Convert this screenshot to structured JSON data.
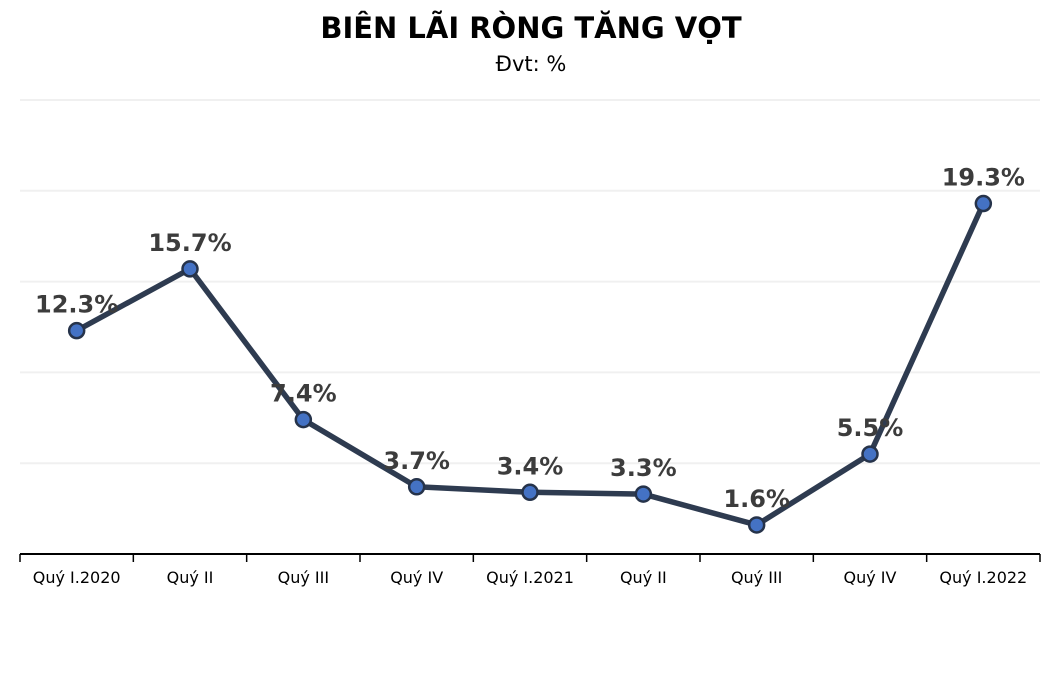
{
  "header": {
    "title": "BIÊN LÃI RÒNG TĂNG VỌT",
    "subtitle": "Đvt: %"
  },
  "chart_data": {
    "type": "line",
    "title": "BIÊN LÃI RÒNG TĂNG VỌT",
    "subtitle": "Đvt: %",
    "unit": "%",
    "categories": [
      "Quý I.2020",
      "Quý II",
      "Quý III",
      "Quý IV",
      "Quý I.2021",
      "Quý II",
      "Quý III",
      "Quý IV",
      "Quý I.2022"
    ],
    "values": [
      12.3,
      15.7,
      7.4,
      3.7,
      3.4,
      3.3,
      1.6,
      5.5,
      19.3
    ],
    "data_labels": [
      "12.3%",
      "15.7%",
      "7.4%",
      "3.7%",
      "3.4%",
      "3.3%",
      "1.6%",
      "5.5%",
      "19.3%"
    ],
    "xlabel": "",
    "ylabel": "",
    "ylim": [
      0,
      25
    ],
    "gridline_step": 5,
    "grid": true,
    "legend": "none",
    "colors": {
      "line": "#2E3B50",
      "marker_fill": "#4472C4",
      "marker_border": "#26334A",
      "gridline": "#F0F0F0",
      "axis": "#000000",
      "data_label": "#3C3C3C",
      "tick_label": "#000000",
      "background": "#FFFFFF"
    }
  }
}
